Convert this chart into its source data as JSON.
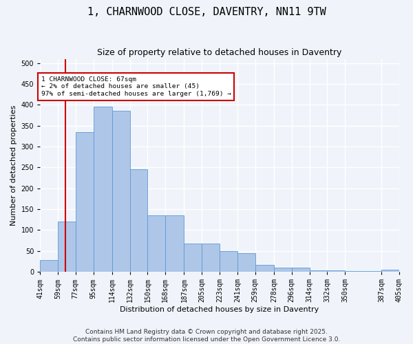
{
  "title": "1, CHARNWOOD CLOSE, DAVENTRY, NN11 9TW",
  "subtitle": "Size of property relative to detached houses in Daventry",
  "xlabel": "Distribution of detached houses by size in Daventry",
  "ylabel": "Number of detached properties",
  "bar_values": [
    28,
    120,
    335,
    395,
    385,
    245,
    135,
    135,
    68,
    68,
    50,
    45,
    17,
    10,
    10,
    3,
    3,
    2,
    6
  ],
  "bin_edges": [
    41,
    59,
    77,
    95,
    114,
    132,
    150,
    168,
    187,
    205,
    223,
    241,
    259,
    278,
    296,
    314,
    332,
    350,
    387,
    405
  ],
  "x_tick_labels": [
    "41sqm",
    "59sqm",
    "77sqm",
    "95sqm",
    "114sqm",
    "132sqm",
    "150sqm",
    "168sqm",
    "187sqm",
    "205sqm",
    "223sqm",
    "241sqm",
    "259sqm",
    "278sqm",
    "296sqm",
    "314sqm",
    "332sqm",
    "350sqm",
    "387sqm",
    "405sqm"
  ],
  "bar_color": "#aec6e8",
  "bar_edge_color": "#5b9bd5",
  "red_line_x": 67,
  "annotation_text": "1 CHARNWOOD CLOSE: 67sqm\n← 2% of detached houses are smaller (45)\n97% of semi-detached houses are larger (1,769) →",
  "annotation_box_color": "#ffffff",
  "annotation_box_edge": "#cc0000",
  "ylim": [
    0,
    510
  ],
  "yticks": [
    0,
    50,
    100,
    150,
    200,
    250,
    300,
    350,
    400,
    450,
    500
  ],
  "footer1": "Contains HM Land Registry data © Crown copyright and database right 2025.",
  "footer2": "Contains public sector information licensed under the Open Government Licence 3.0.",
  "background_color": "#f0f4fa",
  "grid_color": "#ffffff",
  "title_fontsize": 11,
  "subtitle_fontsize": 9,
  "axis_label_fontsize": 8,
  "tick_fontsize": 7,
  "annotation_fontsize": 6.8,
  "footer_fontsize": 6.5
}
